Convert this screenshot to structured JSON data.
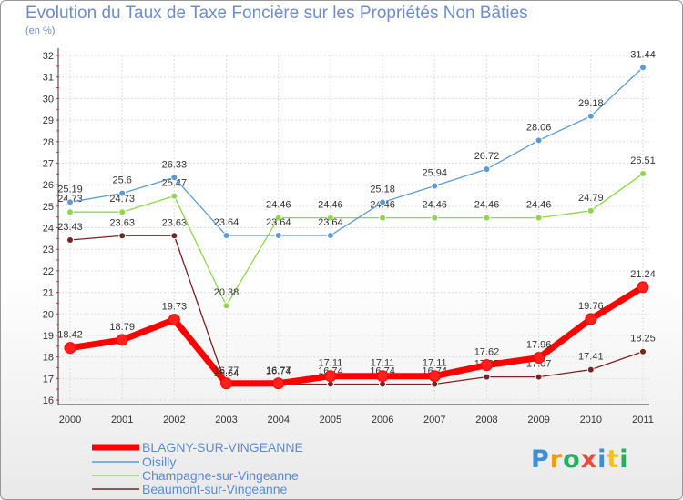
{
  "chart_data": {
    "type": "line",
    "title": "Evolution du Taux de Taxe Foncière sur les Propriétés Non Bâties",
    "ylabel": "(en %)",
    "xlabel": "",
    "x": [
      "2000",
      "2001",
      "2002",
      "2003",
      "2004",
      "2005",
      "2006",
      "2007",
      "2008",
      "2009",
      "2010",
      "2011"
    ],
    "ylim": [
      16,
      32
    ],
    "yticks": [
      "16",
      "17",
      "18",
      "19",
      "20",
      "21",
      "22",
      "23",
      "24",
      "25",
      "26",
      "27",
      "28",
      "29",
      "30",
      "31",
      "32"
    ],
    "grid": true,
    "series": [
      {
        "name": "BLAGNY-SUR-VINGEANNE",
        "color": "#ff0000",
        "values": [
          18.42,
          18.79,
          19.73,
          16.77,
          16.77,
          17.11,
          17.11,
          17.11,
          17.62,
          17.96,
          19.76,
          21.24
        ],
        "labels": [
          "18.42",
          "18.79",
          "19.73",
          "16.77",
          "16.77",
          "17.11",
          "17.11",
          "17.11",
          "17.62",
          "17.96",
          "19.76",
          "21.24"
        ]
      },
      {
        "name": "Oisilly",
        "color": "#5b9bd5",
        "values": [
          25.19,
          25.6,
          26.33,
          23.64,
          23.64,
          23.64,
          25.18,
          25.94,
          26.72,
          28.06,
          29.18,
          31.44
        ],
        "labels": [
          "25.19",
          "25.6",
          "26.33",
          "23.64",
          "23.64",
          "23.64",
          "25.18",
          "25.94",
          "26.72",
          "28.06",
          "29.18",
          "31.44"
        ]
      },
      {
        "name": "Champagne-sur-Vingeanne",
        "color": "#8ed64a",
        "values": [
          24.73,
          24.73,
          25.47,
          20.38,
          24.46,
          24.46,
          24.46,
          24.46,
          24.46,
          24.46,
          24.79,
          26.51
        ],
        "labels": [
          "24.73",
          "24.73",
          "25.47",
          "20.38",
          "24.46",
          "24.46",
          "24.46",
          "24.46",
          "24.46",
          "24.46",
          "24.79",
          "26.51"
        ]
      },
      {
        "name": "Beaumont-sur-Vingeanne",
        "color": "#7a2222",
        "values": [
          23.43,
          23.63,
          23.63,
          16.64,
          16.74,
          16.74,
          16.74,
          16.74,
          17.07,
          17.07,
          17.41,
          18.25
        ],
        "labels": [
          "23.43",
          "23.63",
          "23.63",
          "16.64",
          "16.74",
          "16.74",
          "16.74",
          "16.74",
          "17.07",
          "17.07",
          "17.41",
          "18.25"
        ]
      }
    ],
    "legend_position": "bottom-left"
  },
  "logo": {
    "text": "Proxiti"
  }
}
